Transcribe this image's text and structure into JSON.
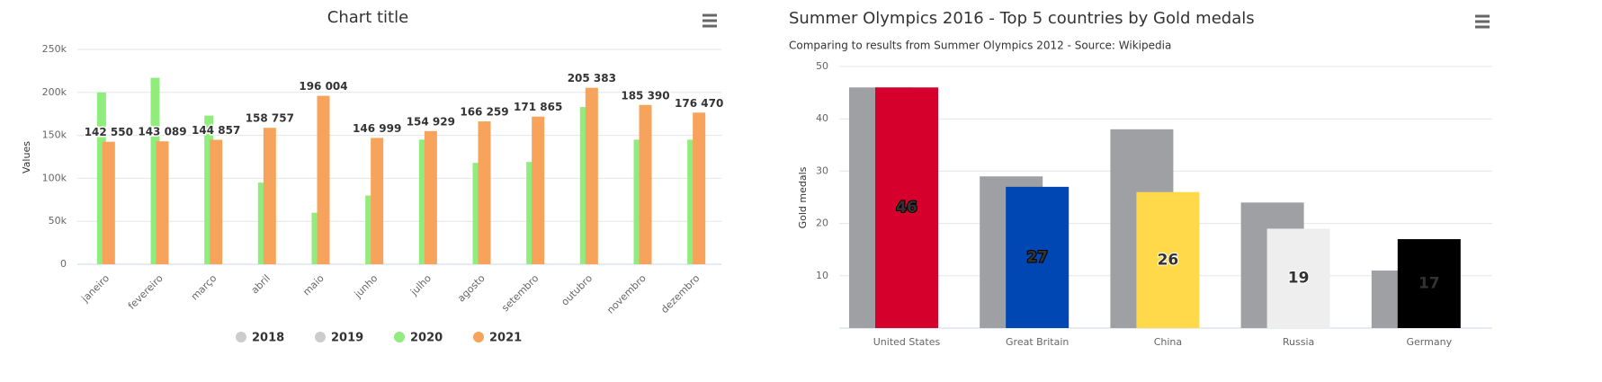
{
  "chart_data": [
    {
      "type": "bar",
      "title": "Chart title",
      "y_label": "Values",
      "categories": [
        "janeiro",
        "fevereiro",
        "março",
        "abril",
        "maio",
        "junho",
        "julho",
        "agosto",
        "setembro",
        "outubro",
        "novembro",
        "dezembro"
      ],
      "series": [
        {
          "name": "2018",
          "color": "#cccccc",
          "visible": false,
          "values": [
            null,
            null,
            null,
            null,
            null,
            null,
            null,
            null,
            null,
            null,
            null,
            null
          ]
        },
        {
          "name": "2019",
          "color": "#cccccc",
          "visible": false,
          "values": [
            null,
            null,
            null,
            null,
            null,
            null,
            null,
            null,
            null,
            null,
            null,
            null
          ]
        },
        {
          "name": "2020",
          "color": "#90ed7d",
          "values": [
            200000,
            217000,
            173000,
            95000,
            60000,
            80000,
            145000,
            118000,
            119000,
            183000,
            145000,
            145000
          ]
        },
        {
          "name": "2021",
          "color": "#f7a35c",
          "values": [
            142550,
            143089,
            144857,
            158757,
            196004,
            146999,
            154929,
            166259,
            171865,
            205383,
            185390,
            176470
          ],
          "value_labels": [
            "142 550",
            "143 089",
            "144 857",
            "158 757",
            "196 004",
            "146 999",
            "154 929",
            "166 259",
            "171 865",
            "205 383",
            "185 390",
            "176 470"
          ]
        }
      ],
      "ylim": [
        0,
        250000
      ],
      "yticks": [
        0,
        {
          "value": 50000,
          "label": "50k"
        },
        {
          "value": 100000,
          "label": "100k"
        },
        {
          "value": 150000,
          "label": "150k"
        },
        {
          "value": 200000,
          "label": "200k"
        },
        {
          "value": 250000,
          "label": "250k"
        }
      ],
      "grid": true,
      "legend": "bottom"
    },
    {
      "type": "bar",
      "title": "Summer Olympics 2016 - Top 5 countries by Gold medals",
      "subtitle": "Comparing to results from Summer Olympics 2012 - Source: Wikipedia",
      "y_label": "Gold medals",
      "categories": [
        "United States",
        "Great Britain",
        "China",
        "Russia",
        "Germany"
      ],
      "series": [
        {
          "color": "#9fa0a4",
          "values": [
            46,
            29,
            38,
            24,
            11
          ]
        },
        {
          "colors": [
            "#d5002b",
            "#0047b3",
            "#ffd94a",
            "#eeeeee",
            "#000000"
          ],
          "values": [
            46,
            27,
            26,
            19,
            17
          ]
        }
      ],
      "ylim": [
        0,
        50
      ],
      "yticks": [
        10,
        20,
        30,
        40,
        50
      ],
      "grid": true
    }
  ]
}
